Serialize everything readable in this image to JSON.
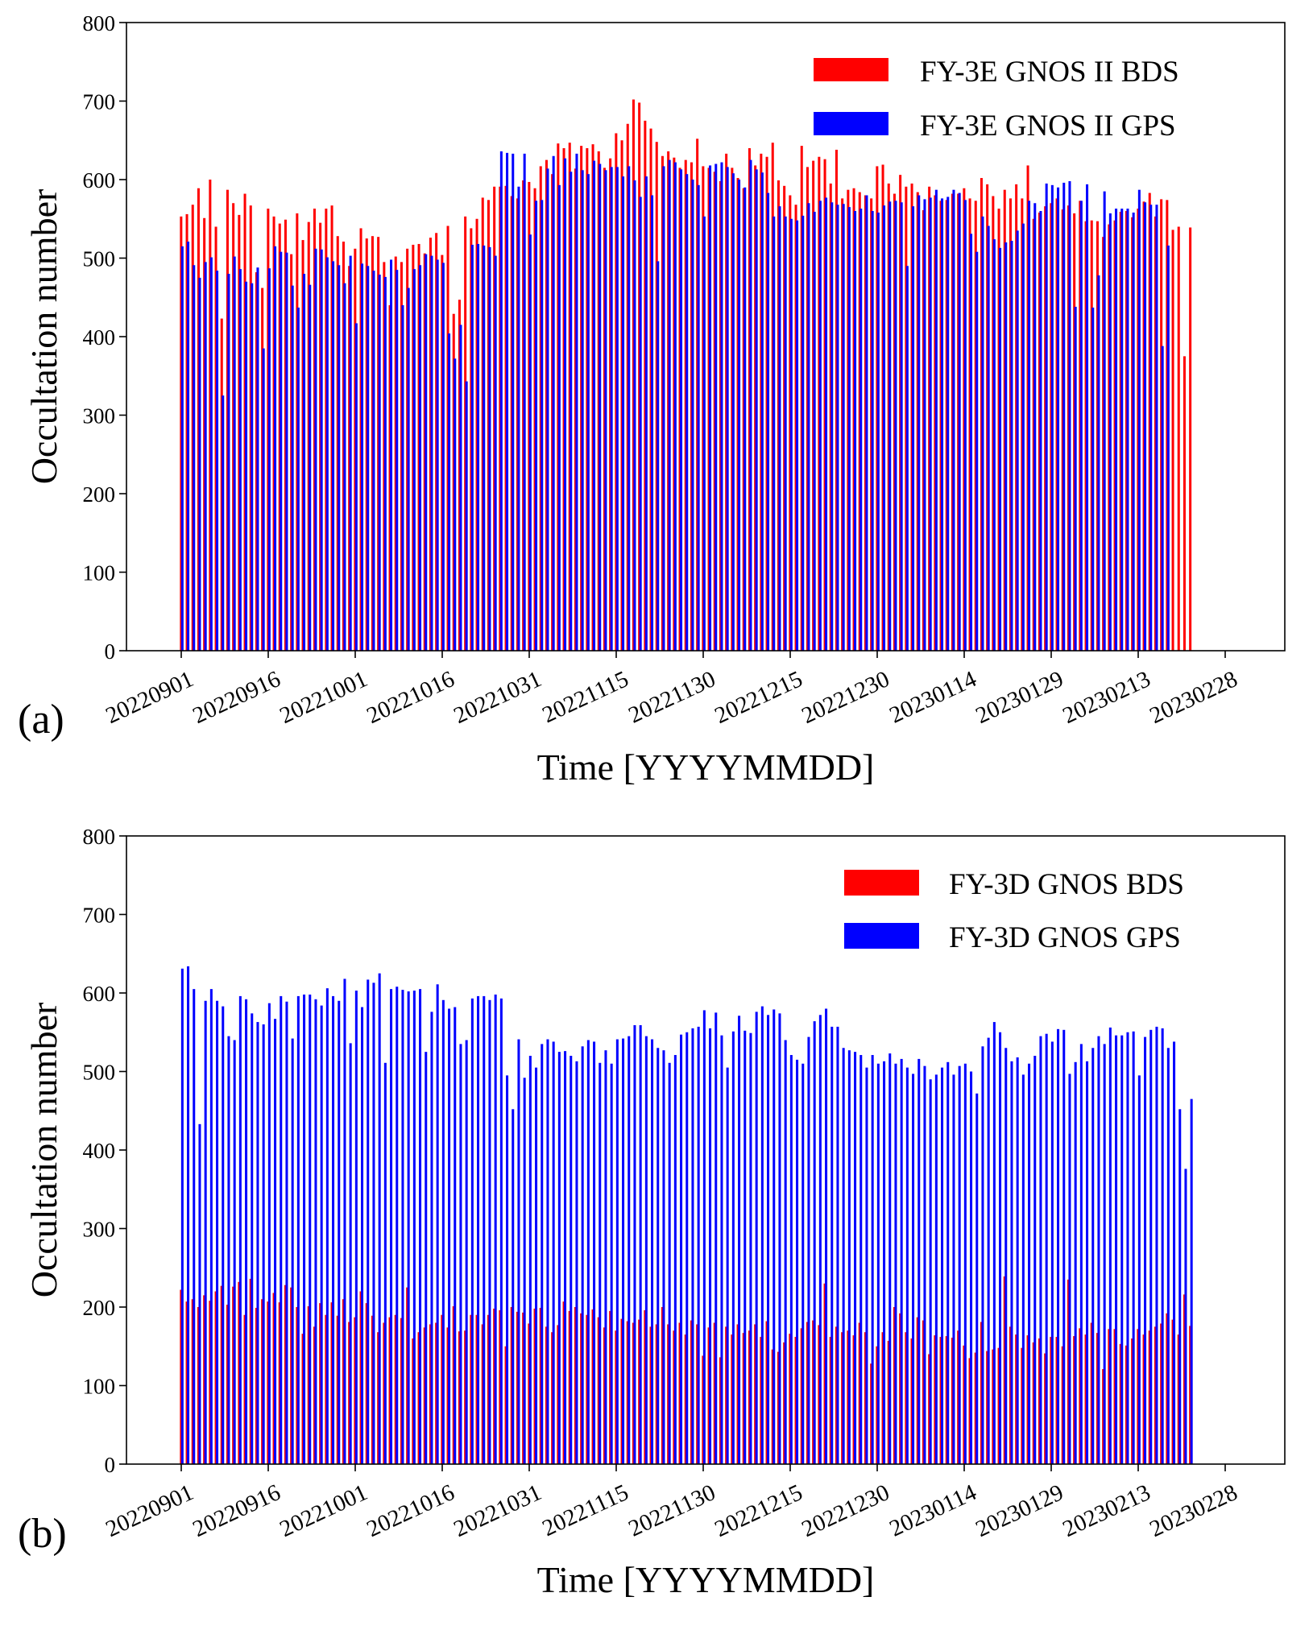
{
  "chart_data": [
    {
      "type": "bar",
      "panel_label": "(a)",
      "xlabel": "Time [YYYYMMDD]",
      "ylabel": "Occultation number",
      "ylim": [
        0,
        800
      ],
      "yticks": [
        "0",
        "100",
        "200",
        "300",
        "400",
        "500",
        "600",
        "700",
        "800"
      ],
      "xticks": [
        {
          "label": "20220901",
          "day": 0
        },
        {
          "label": "20220916",
          "day": 15
        },
        {
          "label": "20221001",
          "day": 30
        },
        {
          "label": "20221016",
          "day": 45
        },
        {
          "label": "20221031",
          "day": 60
        },
        {
          "label": "20221115",
          "day": 75
        },
        {
          "label": "20221130",
          "day": 90
        },
        {
          "label": "20221215",
          "day": 105
        },
        {
          "label": "20221230",
          "day": 120
        },
        {
          "label": "20230114",
          "day": 135
        },
        {
          "label": "20230129",
          "day": 150
        },
        {
          "label": "20230213",
          "day": 165
        },
        {
          "label": "20230228",
          "day": 180
        }
      ],
      "start_date": "20220901",
      "legend_position": "top-right",
      "series": [
        {
          "name": "FY-3E GNOS II BDS",
          "color": "#ff0000",
          "values": [
            553,
            556,
            568,
            589,
            551,
            600,
            540,
            423,
            587,
            570,
            555,
            582,
            567,
            482,
            462,
            563,
            553,
            544,
            549,
            505,
            557,
            523,
            546,
            563,
            545,
            563,
            567,
            528,
            521,
            490,
            512,
            538,
            525,
            528,
            527,
            495,
            440,
            502,
            495,
            512,
            517,
            518,
            506,
            526,
            532,
            504,
            541,
            429,
            447,
            553,
            538,
            550,
            577,
            574,
            591,
            591,
            592,
            579,
            576,
            599,
            597,
            589,
            617,
            625,
            607,
            646,
            640,
            647,
            614,
            643,
            640,
            645,
            636,
            615,
            627,
            659,
            650,
            671,
            702,
            698,
            675,
            665,
            648,
            630,
            636,
            628,
            615,
            625,
            622,
            652,
            617,
            615,
            610,
            598,
            633,
            615,
            602,
            589,
            640,
            618,
            633,
            629,
            647,
            599,
            592,
            580,
            568,
            643,
            616,
            624,
            629,
            626,
            595,
            638,
            576,
            587,
            589,
            584,
            580,
            576,
            617,
            619,
            595,
            582,
            606,
            591,
            595,
            584,
            561,
            591,
            580,
            573,
            574,
            582,
            582,
            589,
            576,
            573,
            602,
            594,
            579,
            563,
            587,
            576,
            594,
            576,
            618,
            550,
            558,
            566,
            570,
            576,
            562,
            567,
            557,
            573,
            547,
            548,
            547,
            527,
            543,
            548,
            559,
            560,
            552,
            563,
            572,
            583,
            553,
            575,
            574,
            536,
            540,
            375,
            539
          ],
          "values_note": "approximate"
        },
        {
          "name": "FY-3E GNOS II GPS",
          "color": "#0000ff",
          "values": [
            515,
            521,
            491,
            475,
            495,
            501,
            484,
            325,
            480,
            502,
            486,
            470,
            468,
            488,
            385,
            487,
            515,
            508,
            507,
            465,
            437,
            480,
            466,
            512,
            511,
            501,
            496,
            491,
            468,
            503,
            417,
            493,
            490,
            484,
            479,
            476,
            498,
            485,
            440,
            462,
            486,
            491,
            505,
            503,
            498,
            494,
            404,
            372,
            415,
            343,
            517,
            518,
            516,
            514,
            503,
            636,
            634,
            633,
            591,
            633,
            530,
            573,
            574,
            614,
            630,
            593,
            627,
            610,
            633,
            612,
            607,
            624,
            620,
            612,
            616,
            616,
            604,
            617,
            599,
            578,
            604,
            580,
            496,
            617,
            625,
            622,
            613,
            607,
            600,
            593,
            553,
            618,
            620,
            622,
            616,
            608,
            600,
            590,
            625,
            613,
            609,
            583,
            553,
            566,
            553,
            550,
            548,
            554,
            570,
            559,
            573,
            577,
            571,
            568,
            569,
            565,
            560,
            563,
            580,
            560,
            558,
            567,
            572,
            573,
            571,
            490,
            566,
            580,
            575,
            577,
            587,
            576,
            578,
            587,
            583,
            574,
            531,
            508,
            553,
            541,
            524,
            513,
            520,
            522,
            535,
            544,
            573,
            570,
            560,
            595,
            593,
            590,
            596,
            598,
            438,
            573,
            594,
            437,
            478,
            585,
            557,
            563,
            563,
            563,
            558,
            587,
            571,
            568,
            568,
            388,
            516
          ],
          "values_note": "approximate"
        }
      ]
    },
    {
      "type": "bar",
      "panel_label": "(b)",
      "xlabel": "Time [YYYYMMDD]",
      "ylabel": "Occultation number",
      "ylim": [
        0,
        800
      ],
      "yticks": [
        "0",
        "100",
        "200",
        "300",
        "400",
        "500",
        "600",
        "700",
        "800"
      ],
      "xticks": [
        {
          "label": "20220901",
          "day": 0
        },
        {
          "label": "20220916",
          "day": 15
        },
        {
          "label": "20221001",
          "day": 30
        },
        {
          "label": "20221016",
          "day": 45
        },
        {
          "label": "20221031",
          "day": 60
        },
        {
          "label": "20221115",
          "day": 75
        },
        {
          "label": "20221130",
          "day": 90
        },
        {
          "label": "20221215",
          "day": 105
        },
        {
          "label": "20221230",
          "day": 120
        },
        {
          "label": "20230114",
          "day": 135
        },
        {
          "label": "20230129",
          "day": 150
        },
        {
          "label": "20230213",
          "day": 165
        },
        {
          "label": "20230228",
          "day": 180
        }
      ],
      "start_date": "20220901",
      "legend_position": "top-right",
      "series": [
        {
          "name": "FY-3D GNOS BDS",
          "color": "#ff0000",
          "values": [
            222,
            207,
            210,
            200,
            215,
            208,
            220,
            227,
            203,
            226,
            232,
            190,
            236,
            199,
            210,
            207,
            218,
            206,
            228,
            225,
            200,
            166,
            201,
            175,
            205,
            190,
            206,
            189,
            210,
            181,
            187,
            220,
            205,
            189,
            168,
            180,
            187,
            190,
            186,
            225,
            160,
            168,
            174,
            178,
            180,
            190,
            174,
            201,
            169,
            170,
            190,
            190,
            178,
            190,
            198,
            196,
            150,
            200,
            194,
            193,
            179,
            198,
            199,
            175,
            168,
            177,
            207,
            195,
            200,
            192,
            190,
            197,
            187,
            174,
            195,
            170,
            185,
            182,
            180,
            184,
            196,
            175,
            178,
            200,
            178,
            170,
            180,
            165,
            183,
            178,
            138,
            174,
            180,
            136,
            175,
            165,
            178,
            167,
            170,
            178,
            162,
            182,
            146,
            143,
            155,
            166,
            162,
            173,
            181,
            183,
            177,
            230,
            162,
            175,
            168,
            170,
            164,
            180,
            168,
            128,
            150,
            168,
            157,
            200,
            192,
            168,
            160,
            187,
            183,
            140,
            164,
            162,
            163,
            161,
            170,
            151,
            135,
            142,
            181,
            144,
            146,
            148,
            239,
            175,
            165,
            148,
            164,
            155,
            160,
            141,
            162,
            162,
            150,
            235,
            163,
            173,
            165,
            180,
            167,
            121,
            172,
            172,
            153,
            151,
            160,
            172,
            165,
            170,
            175,
            179,
            192,
            184,
            165,
            216,
            176
          ]
        },
        {
          "name": "FY-3D GNOS GPS",
          "color": "#0000ff",
          "values": [
            631,
            634,
            605,
            433,
            590,
            605,
            590,
            583,
            545,
            540,
            596,
            592,
            574,
            563,
            560,
            587,
            567,
            596,
            589,
            542,
            596,
            598,
            598,
            592,
            584,
            606,
            596,
            590,
            618,
            536,
            603,
            582,
            617,
            613,
            625,
            511,
            605,
            608,
            604,
            602,
            603,
            605,
            525,
            576,
            611,
            591,
            580,
            582,
            535,
            540,
            593,
            596,
            596,
            591,
            598,
            593,
            495,
            452,
            541,
            492,
            520,
            505,
            535,
            541,
            538,
            525,
            526,
            520,
            513,
            532,
            540,
            538,
            511,
            527,
            510,
            541,
            542,
            545,
            559,
            559,
            545,
            541,
            530,
            527,
            511,
            521,
            547,
            550,
            555,
            557,
            578,
            555,
            575,
            546,
            505,
            551,
            571,
            552,
            549,
            576,
            583,
            572,
            579,
            574,
            540,
            521,
            515,
            510,
            544,
            564,
            572,
            580,
            557,
            557,
            530,
            527,
            525,
            521,
            505,
            521,
            510,
            513,
            523,
            510,
            516,
            505,
            497,
            516,
            507,
            490,
            496,
            505,
            512,
            496,
            507,
            510,
            500,
            472,
            532,
            543,
            563,
            550,
            530,
            513,
            518,
            496,
            510,
            520,
            545,
            548,
            538,
            554,
            553,
            497,
            512,
            535,
            513,
            530,
            545,
            535,
            556,
            546,
            546,
            550,
            551,
            495,
            544,
            553,
            557,
            555,
            530,
            538,
            452,
            376,
            465
          ]
        }
      ]
    }
  ]
}
